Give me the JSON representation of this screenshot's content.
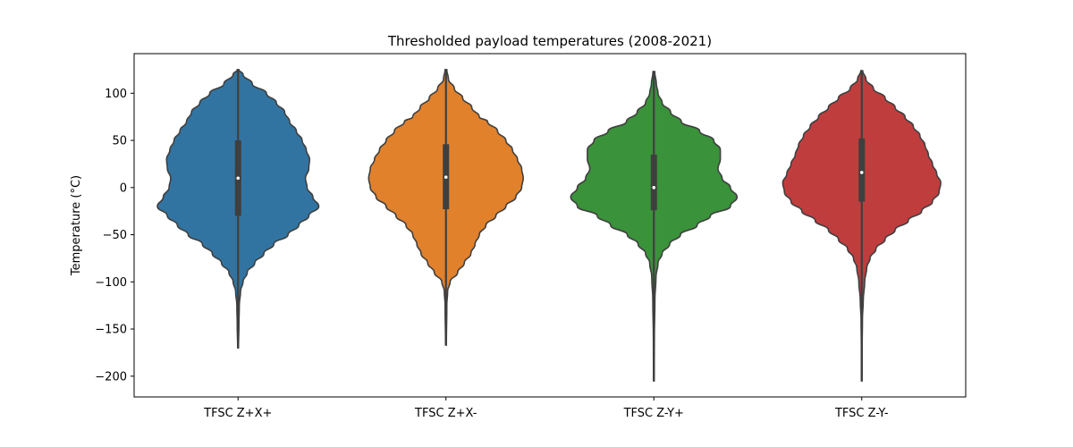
{
  "chart_data": {
    "type": "violin",
    "title": "Thresholded payload temperatures (2008-2021)",
    "xlabel": "",
    "ylabel": "Temperature (°C)",
    "ylim": [
      -222,
      142
    ],
    "yticks": [
      100,
      50,
      0,
      -50,
      -100,
      -150,
      -200
    ],
    "grid": false,
    "categories": [
      "TFSC Z+X+",
      "TFSC Z+X-",
      "TFSC Z-Y+",
      "TFSC Z-Y-"
    ],
    "series": [
      {
        "color": "#3274a1",
        "min": -170,
        "max": 125,
        "q1": -30,
        "median": 10,
        "q3": 50,
        "whisker_low": -142,
        "whisker_high": 125,
        "profile": [
          [
            125,
            0.01
          ],
          [
            120,
            0.06
          ],
          [
            110,
            0.17
          ],
          [
            100,
            0.34
          ],
          [
            90,
            0.46
          ],
          [
            80,
            0.56
          ],
          [
            70,
            0.62
          ],
          [
            60,
            0.7
          ],
          [
            50,
            0.77
          ],
          [
            40,
            0.82
          ],
          [
            30,
            0.86
          ],
          [
            20,
            0.85
          ],
          [
            10,
            0.81
          ],
          [
            0,
            0.83
          ],
          [
            -10,
            0.9
          ],
          [
            -20,
            0.97
          ],
          [
            -30,
            0.85
          ],
          [
            -40,
            0.73
          ],
          [
            -50,
            0.6
          ],
          [
            -60,
            0.43
          ],
          [
            -70,
            0.31
          ],
          [
            -80,
            0.2
          ],
          [
            -90,
            0.11
          ],
          [
            -100,
            0.06
          ],
          [
            -110,
            0.03
          ],
          [
            -125,
            0.015
          ],
          [
            -145,
            0.01
          ],
          [
            -170,
            0.005
          ]
        ]
      },
      {
        "color": "#e1812c",
        "min": -167,
        "max": 125,
        "q1": -23,
        "median": 11,
        "q3": 46,
        "whisker_low": -120,
        "whisker_high": 125,
        "profile": [
          [
            125,
            0.01
          ],
          [
            115,
            0.03
          ],
          [
            105,
            0.1
          ],
          [
            95,
            0.2
          ],
          [
            85,
            0.31
          ],
          [
            75,
            0.4
          ],
          [
            70,
            0.5
          ],
          [
            60,
            0.62
          ],
          [
            50,
            0.72
          ],
          [
            40,
            0.8
          ],
          [
            30,
            0.86
          ],
          [
            20,
            0.91
          ],
          [
            10,
            0.93
          ],
          [
            0,
            0.91
          ],
          [
            -10,
            0.84
          ],
          [
            -20,
            0.72
          ],
          [
            -30,
            0.6
          ],
          [
            -40,
            0.48
          ],
          [
            -50,
            0.4
          ],
          [
            -60,
            0.35
          ],
          [
            -70,
            0.3
          ],
          [
            -80,
            0.22
          ],
          [
            -90,
            0.14
          ],
          [
            -100,
            0.05
          ],
          [
            -110,
            0.02
          ],
          [
            -125,
            0.01
          ],
          [
            -167,
            0.005
          ]
        ]
      },
      {
        "color": "#3a923a",
        "min": -205,
        "max": 123,
        "q1": -24,
        "median": 0,
        "q3": 35,
        "whisker_low": -125,
        "whisker_high": 115,
        "profile": [
          [
            123,
            0.01
          ],
          [
            110,
            0.03
          ],
          [
            100,
            0.05
          ],
          [
            90,
            0.1
          ],
          [
            80,
            0.2
          ],
          [
            70,
            0.33
          ],
          [
            60,
            0.55
          ],
          [
            50,
            0.72
          ],
          [
            40,
            0.8
          ],
          [
            30,
            0.8
          ],
          [
            20,
            0.77
          ],
          [
            10,
            0.82
          ],
          [
            0,
            0.92
          ],
          [
            -10,
            1.0
          ],
          [
            -20,
            0.92
          ],
          [
            -30,
            0.68
          ],
          [
            -40,
            0.52
          ],
          [
            -50,
            0.32
          ],
          [
            -60,
            0.19
          ],
          [
            -70,
            0.1
          ],
          [
            -80,
            0.05
          ],
          [
            -95,
            0.025
          ],
          [
            -120,
            0.012
          ],
          [
            -160,
            0.006
          ],
          [
            -205,
            0.004
          ]
        ]
      },
      {
        "color": "#c03d3e",
        "min": -205,
        "max": 124,
        "q1": -15,
        "median": 16,
        "q3": 52,
        "whisker_low": -110,
        "whisker_high": 110,
        "profile": [
          [
            124,
            0.01
          ],
          [
            115,
            0.05
          ],
          [
            105,
            0.14
          ],
          [
            95,
            0.28
          ],
          [
            85,
            0.4
          ],
          [
            75,
            0.52
          ],
          [
            65,
            0.62
          ],
          [
            55,
            0.7
          ],
          [
            45,
            0.76
          ],
          [
            35,
            0.8
          ],
          [
            25,
            0.85
          ],
          [
            15,
            0.9
          ],
          [
            5,
            0.95
          ],
          [
            -5,
            0.93
          ],
          [
            -15,
            0.85
          ],
          [
            -25,
            0.72
          ],
          [
            -35,
            0.56
          ],
          [
            -45,
            0.4
          ],
          [
            -55,
            0.28
          ],
          [
            -65,
            0.17
          ],
          [
            -75,
            0.1
          ],
          [
            -85,
            0.06
          ],
          [
            -100,
            0.035
          ],
          [
            -120,
            0.018
          ],
          [
            -140,
            0.008
          ],
          [
            -170,
            0.005
          ],
          [
            -205,
            0.004
          ]
        ]
      }
    ]
  }
}
